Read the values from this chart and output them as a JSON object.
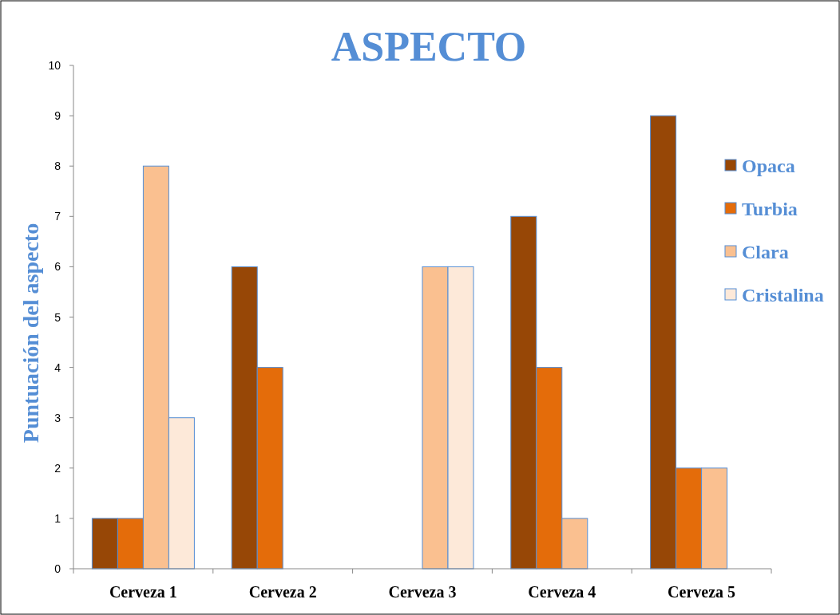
{
  "chart_data": {
    "type": "bar",
    "title": "ASPECTO",
    "ylabel": "Puntuación del aspecto",
    "categories": [
      "Cerveza 1",
      "Cerveza 2",
      "Cerveza 3",
      "Cerveza 4",
      "Cerveza 5"
    ],
    "series": [
      {
        "name": "Opaca",
        "color": "#974706",
        "values": [
          1,
          6,
          0,
          7,
          9
        ]
      },
      {
        "name": "Turbia",
        "color": "#e46c0a",
        "values": [
          1,
          4,
          0,
          4,
          2
        ]
      },
      {
        "name": "Clara",
        "color": "#fac090",
        "values": [
          8,
          0,
          6,
          1,
          2
        ]
      },
      {
        "name": "Cristalina",
        "color": "#fde9d9",
        "values": [
          3,
          0,
          6,
          0,
          0
        ]
      }
    ],
    "ylim": [
      0,
      10
    ],
    "yticks": [
      0,
      1,
      2,
      3,
      4,
      5,
      6,
      7,
      8,
      9,
      10
    ],
    "grid": false,
    "legend": "right"
  }
}
